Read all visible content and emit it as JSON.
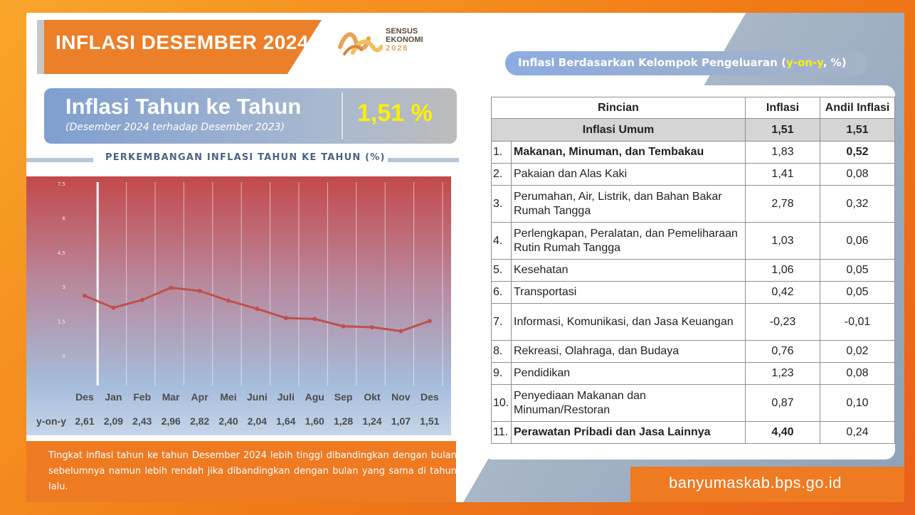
{
  "slide": {
    "title": "INFLASI DESEMBER 2024",
    "logo": {
      "line1": "SENSUS",
      "line2": "EKONOMI",
      "line3": "2026"
    },
    "colors": {
      "orange": "#ec7f2a",
      "yellow": "#ffef00",
      "line": "#c0504d"
    }
  },
  "kpi": {
    "title": "Inflasi Tahun ke Tahun",
    "subtitle": "(Desember 2024 terhadap Desember 2023)",
    "value": "1,51 %"
  },
  "chart_heading": "PERKEMBANGAN INFLASI TAHUN KE TAHUN (%)",
  "chart_data": {
    "type": "line",
    "title": "PERKEMBANGAN INFLASI TAHUN KE TAHUN (%)",
    "categories": [
      "Des",
      "Jan",
      "Feb",
      "Mar",
      "Apr",
      "Mei",
      "Juni",
      "Juli",
      "Agu",
      "Sep",
      "Okt",
      "Nov",
      "Des"
    ],
    "series": [
      {
        "values": [
          2.61,
          2.09,
          2.43,
          2.96,
          2.82,
          2.4,
          2.04,
          1.64,
          1.6,
          1.28,
          1.24,
          1.07,
          1.51
        ]
      }
    ],
    "value_labels": [
      "2,61",
      "2,09",
      "2,43",
      "2,96",
      "2,82",
      "2,40",
      "2,04",
      "1,64",
      "1,60",
      "1,28",
      "1,24",
      "1,07",
      "1,51"
    ],
    "row_label": "y-on-y",
    "yticks": [
      "0",
      "1.5",
      "3",
      "4.5",
      "6",
      "7.5"
    ],
    "ylim": [
      0,
      7.5
    ],
    "grid": true
  },
  "note": "Tingkat inflasi tahun ke tahun Desember 2024 lebih tinggi dibandingkan dengan bulan sebelumnya namun lebih rendah jika dibandingkan dengan bulan yang sama di tahun lalu.",
  "table": {
    "heading_pre": "Inflasi Berdasarkan Kelompok Pengeluaran (",
    "heading_hl": "y-on-y",
    "heading_post": ", %)",
    "columns": [
      "Rincian",
      "Inflasi",
      "Andil Inflasi"
    ],
    "umum": {
      "label": "Inflasi Umum",
      "inflasi": "1,51",
      "andil": "1,51"
    },
    "rows": [
      {
        "no": "1.",
        "name": "Makanan, Minuman, dan Tembakau",
        "inflasi": "1,83",
        "andil": "0,52"
      },
      {
        "no": "2.",
        "name": "Pakaian dan Alas Kaki",
        "inflasi": "1,41",
        "andil": "0,08"
      },
      {
        "no": "3.",
        "name": "Perumahan, Air, Listrik, dan Bahan Bakar Rumah Tangga",
        "inflasi": "2,78",
        "andil": "0,32"
      },
      {
        "no": "4.",
        "name": "Perlengkapan, Peralatan, dan Pemeliharaan Rutin Rumah Tangga",
        "inflasi": "1,03",
        "andil": "0,06"
      },
      {
        "no": "5.",
        "name": "Kesehatan",
        "inflasi": "1,06",
        "andil": "0,05"
      },
      {
        "no": "6.",
        "name": "Transportasi",
        "inflasi": "0,42",
        "andil": "0,05"
      },
      {
        "no": "7.",
        "name": "Informasi, Komunikasi, dan Jasa Keuangan",
        "inflasi": "-0,23",
        "andil": "-0,01"
      },
      {
        "no": "8.",
        "name": "Rekreasi, Olahraga, dan Budaya",
        "inflasi": "0,76",
        "andil": "0,02"
      },
      {
        "no": "9.",
        "name": "Pendidikan",
        "inflasi": "1,23",
        "andil": "0,08"
      },
      {
        "no": "10.",
        "name": "Penyediaan Makanan dan Minuman/Restoran",
        "inflasi": "0,87",
        "andil": "0,10"
      },
      {
        "no": "11.",
        "name": "Perawatan Pribadi dan Jasa Lainnya",
        "inflasi": "4,40",
        "andil": "0,24"
      }
    ]
  },
  "footer": "banyumaskab.bps.go.id"
}
